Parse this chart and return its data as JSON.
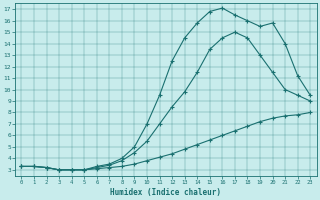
{
  "xlabel": "Humidex (Indice chaleur)",
  "bg_color": "#c8ecec",
  "line_color": "#1a7070",
  "xlim": [
    -0.5,
    23.5
  ],
  "ylim": [
    2.5,
    17.5
  ],
  "xticks": [
    0,
    1,
    2,
    3,
    4,
    5,
    6,
    7,
    8,
    9,
    10,
    11,
    12,
    13,
    14,
    15,
    16,
    17,
    18,
    19,
    20,
    21,
    22,
    23
  ],
  "yticks": [
    3,
    4,
    5,
    6,
    7,
    8,
    9,
    10,
    11,
    12,
    13,
    14,
    15,
    16,
    17
  ],
  "line1_x": [
    0,
    1,
    2,
    3,
    4,
    5,
    6,
    7,
    8,
    9,
    10,
    11,
    12,
    13,
    14,
    15,
    16,
    17,
    18,
    19,
    20,
    21,
    22,
    23
  ],
  "line1_y": [
    3.3,
    3.3,
    3.2,
    3.0,
    3.0,
    3.0,
    3.1,
    3.2,
    3.3,
    3.5,
    3.8,
    4.1,
    4.4,
    4.8,
    5.2,
    5.6,
    6.0,
    6.4,
    6.8,
    7.2,
    7.5,
    7.7,
    7.8,
    8.0
  ],
  "line2_x": [
    0,
    1,
    2,
    3,
    4,
    5,
    6,
    7,
    8,
    9,
    10,
    11,
    12,
    13,
    14,
    15,
    16,
    17,
    18,
    19,
    20,
    21,
    22,
    23
  ],
  "line2_y": [
    3.3,
    3.3,
    3.2,
    3.0,
    3.0,
    3.0,
    3.2,
    3.4,
    3.8,
    4.5,
    5.5,
    7.0,
    8.5,
    9.8,
    11.5,
    13.5,
    14.5,
    15.0,
    14.5,
    13.0,
    11.5,
    10.0,
    9.5,
    9.0
  ],
  "line3_x": [
    0,
    1,
    2,
    3,
    4,
    5,
    6,
    7,
    8,
    9,
    10,
    11,
    12,
    13,
    14,
    15,
    16,
    17,
    18,
    19,
    20,
    21,
    22,
    23
  ],
  "line3_y": [
    3.3,
    3.3,
    3.2,
    3.0,
    3.0,
    3.0,
    3.3,
    3.5,
    4.0,
    5.0,
    7.0,
    9.5,
    12.5,
    14.5,
    15.8,
    16.8,
    17.1,
    16.5,
    16.0,
    15.5,
    15.8,
    14.0,
    11.2,
    9.5
  ]
}
